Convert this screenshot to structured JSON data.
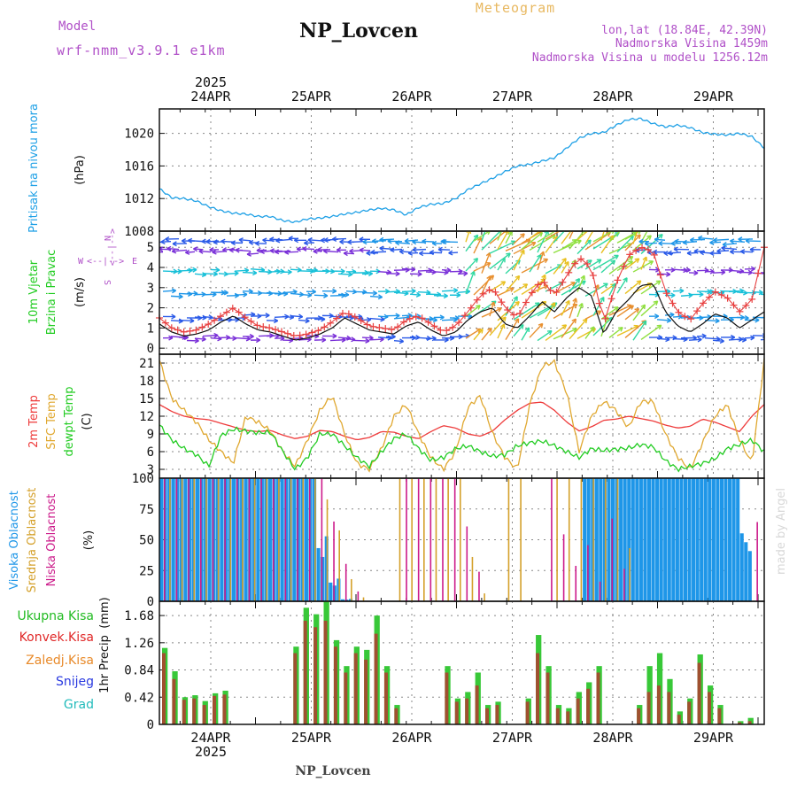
{
  "header": {
    "model_label": "Model",
    "model_name": "wrf-nmm_v3.9.1 e1km",
    "station": "NP_Lovcen",
    "product": "Meteogram",
    "coords": "lon,lat (18.84E, 42.39N)",
    "altitude": "Nadmorska Visina 1459m",
    "model_altitude": "Nadmorska Visina u modelu 1256.12m",
    "footer_station": "NP_Lovcen",
    "watermark": "made by Angel"
  },
  "colors": {
    "pressure": "#1ea0e6",
    "temp2m": "#ee3b3b",
    "sfc": "#e0a830",
    "dew": "#22cc22",
    "cloud_high": "#1e96e8",
    "cloud_mid": "#d4a02a",
    "cloud_low": "#cc1a8a",
    "precip_total": "#38c838",
    "precip_conv": "#a05030",
    "wind_label": "#22cc22",
    "wind_dir": "#b050c8",
    "title_purple": "#b050c8",
    "meteo_orange": "#e8b860"
  },
  "days": [
    "24APR",
    "25APR",
    "26APR",
    "27APR",
    "28APR",
    "29APR"
  ],
  "year": "2025",
  "chart_data": [
    {
      "type": "line",
      "id": "pressure",
      "ylabel": "Pritisak na nivou mora",
      "unit": "(hPa)",
      "ylim": [
        1008,
        1023
      ],
      "yticks": [
        "1008",
        "1012",
        "1016",
        "1020"
      ],
      "grid": true,
      "x_hours": [
        0,
        3,
        6,
        9,
        12,
        15,
        18,
        21,
        24,
        27,
        30,
        33,
        36,
        39,
        42,
        45,
        48,
        51,
        54,
        57,
        60,
        63,
        66,
        69,
        72,
        75,
        78,
        81,
        84,
        87,
        90,
        93,
        96,
        99,
        102,
        105,
        108,
        111,
        114,
        117,
        120,
        123,
        126,
        129,
        132,
        135,
        138,
        141,
        144,
        147
      ],
      "values": [
        1013.2,
        1012.1,
        1012.0,
        1011.7,
        1011.0,
        1010.5,
        1010.2,
        1010.1,
        1009.8,
        1009.8,
        1009.3,
        1009.1,
        1009.5,
        1009.6,
        1009.8,
        1010.1,
        1010.3,
        1010.6,
        1010.8,
        1010.6,
        1010.0,
        1010.9,
        1011.3,
        1011.4,
        1012.0,
        1013.1,
        1013.8,
        1014.5,
        1015.3,
        1016.0,
        1016.2,
        1016.6,
        1017.0,
        1018.2,
        1019.4,
        1020.0,
        1020.1,
        1021.0,
        1021.7,
        1021.8,
        1021.2,
        1020.8,
        1021.0,
        1020.7,
        1020.1,
        1019.9,
        1019.8,
        1020.0,
        1019.6,
        1018.2
      ]
    },
    {
      "type": "line",
      "id": "wind",
      "ylabel": [
        "10m Vjetar",
        "Brzina i Pravac"
      ],
      "unit": "(m/s)",
      "ylim": [
        -0.3,
        5.8
      ],
      "yticks": [
        "0",
        "1",
        "2",
        "3",
        "4",
        "5"
      ],
      "direction_legend": {
        "w": "W",
        "e": "E",
        "n": "N",
        "s": "S",
        "arrows": "<--|-->"
      },
      "grid": true,
      "series": [
        {
          "name": "speed",
          "values": [
            1.2,
            0.8,
            0.6,
            0.7,
            0.9,
            1.3,
            1.6,
            1.2,
            0.9,
            0.8,
            0.6,
            0.4,
            0.5,
            0.7,
            1.0,
            1.5,
            1.2,
            0.9,
            0.8,
            0.7,
            1.1,
            1.3,
            0.9,
            0.6,
            0.8,
            1.4,
            1.8,
            2.0,
            1.2,
            1.0,
            1.6,
            2.3,
            1.8,
            2.5,
            3.0,
            2.6,
            0.7,
            1.8,
            2.4,
            3.1,
            3.2,
            1.8,
            1.1,
            0.8,
            1.2,
            1.7,
            1.5,
            1.0,
            1.4,
            1.8
          ]
        },
        {
          "name": "gust",
          "values": [
            1.5,
            1.0,
            0.8,
            0.9,
            1.2,
            1.6,
            2.0,
            1.5,
            1.1,
            1.0,
            0.8,
            0.6,
            0.7,
            0.9,
            1.3,
            1.8,
            1.5,
            1.1,
            1.0,
            0.9,
            1.4,
            1.6,
            1.2,
            0.8,
            1.1,
            1.8,
            2.6,
            3.0,
            2.0,
            1.5,
            2.6,
            3.4,
            2.6,
            3.6,
            4.5,
            4.0,
            1.2,
            3.2,
            4.6,
            5.0,
            4.8,
            2.8,
            1.8,
            1.4,
            2.2,
            2.8,
            2.5,
            1.8,
            2.4,
            5.0
          ]
        }
      ]
    },
    {
      "type": "line",
      "id": "temperature",
      "ylabel": [
        "2m Temp",
        "SFC Temp",
        "dewpt Temp"
      ],
      "unit": "(C)",
      "ylim": [
        1.5,
        22.5
      ],
      "yticks": [
        "3",
        "6",
        "9",
        "12",
        "15",
        "18",
        "21"
      ],
      "grid": true,
      "series": [
        {
          "name": "2m Temp",
          "values": [
            14.0,
            12.8,
            12.0,
            11.6,
            11.4,
            10.8,
            10.2,
            9.6,
            9.4,
            9.6,
            8.8,
            8.2,
            8.6,
            9.6,
            9.4,
            8.6,
            8.0,
            8.4,
            9.4,
            9.3,
            8.6,
            8.2,
            9.4,
            10.4,
            10.0,
            9.0,
            8.6,
            9.5,
            11.4,
            13.0,
            14.2,
            14.4,
            13.0,
            11.0,
            9.5,
            10.2,
            11.3,
            11.5,
            12.0,
            11.6,
            11.2,
            10.5,
            10.0,
            10.3,
            11.5,
            11.0,
            10.2,
            9.4,
            12.0,
            14.0
          ]
        },
        {
          "name": "SFC Temp",
          "values": [
            21.5,
            15.0,
            13.0,
            11.0,
            8.0,
            6.0,
            4.0,
            12.0,
            11.0,
            9.5,
            6.0,
            3.5,
            8.0,
            13.0,
            15.5,
            9.0,
            4.0,
            3.0,
            6.5,
            12.0,
            14.0,
            9.0,
            5.0,
            3.0,
            6.0,
            13.5,
            15.5,
            9.0,
            5.0,
            3.0,
            14.0,
            20.5,
            21.2,
            16.0,
            6.0,
            12.0,
            14.5,
            13.0,
            10.0,
            14.5,
            14.5,
            9.0,
            5.0,
            3.0,
            7.5,
            12.0,
            14.0,
            8.0,
            4.0,
            21.5
          ]
        },
        {
          "name": "dewpt Temp",
          "values": [
            10.5,
            8.0,
            6.5,
            5.5,
            3.5,
            8.8,
            9.8,
            9.5,
            9.2,
            9.3,
            6.0,
            3.0,
            5.0,
            9.0,
            9.0,
            7.0,
            5.0,
            3.5,
            6.0,
            8.2,
            9.0,
            6.5,
            4.5,
            5.0,
            6.5,
            7.0,
            6.0,
            5.2,
            5.5,
            7.0,
            7.5,
            7.8,
            7.0,
            6.0,
            5.0,
            6.5,
            6.2,
            6.4,
            6.6,
            7.2,
            6.8,
            4.5,
            3.0,
            3.5,
            4.0,
            4.8,
            6.5,
            7.2,
            8.0,
            6.0
          ]
        }
      ]
    },
    {
      "type": "bar",
      "id": "clouds",
      "ylabel": [
        "Visoka Oblacnost",
        "Srednja Oblacnost",
        "Niska Oblacnost"
      ],
      "unit": "(%)",
      "ylim": [
        0,
        100
      ],
      "yticks": [
        "0",
        "25",
        "50",
        "75",
        "100"
      ],
      "grid": true,
      "series": [
        {
          "name": "Visoka Oblacnost",
          "values": [
            100,
            100,
            100,
            100,
            100,
            100,
            100,
            100,
            100,
            100,
            100,
            100,
            100,
            60,
            20,
            2,
            0,
            0,
            0,
            0,
            0,
            0,
            0,
            0,
            0,
            0,
            0,
            0,
            0,
            0,
            0,
            0,
            0,
            0,
            0,
            100,
            100,
            100,
            100,
            100,
            100,
            100,
            100,
            100,
            100,
            100,
            100,
            100,
            60,
            0
          ]
        },
        {
          "name": "Srednja Oblacnost",
          "values": [
            100,
            100,
            100,
            100,
            100,
            100,
            100,
            100,
            100,
            100,
            100,
            100,
            100,
            90,
            60,
            30,
            5,
            0,
            0,
            100,
            100,
            100,
            100,
            100,
            100,
            60,
            10,
            0,
            100,
            100,
            0,
            0,
            100,
            100,
            100,
            100,
            100,
            100,
            60,
            0,
            0,
            0,
            0,
            0,
            0,
            0,
            0,
            0,
            0,
            0
          ]
        },
        {
          "name": "Niska Oblacnost",
          "values": [
            100,
            100,
            100,
            100,
            100,
            100,
            100,
            100,
            100,
            100,
            100,
            100,
            100,
            100,
            90,
            40,
            10,
            0,
            0,
            0,
            100,
            100,
            100,
            100,
            100,
            80,
            30,
            0,
            0,
            0,
            0,
            0,
            100,
            80,
            40,
            60,
            20,
            80,
            30,
            0,
            0,
            0,
            0,
            0,
            0,
            0,
            0,
            0,
            0,
            70
          ]
        }
      ]
    },
    {
      "type": "bar",
      "id": "precipitation",
      "ylabel": "1hr Precip",
      "unit": "(mm)",
      "ylim": [
        0,
        1.9
      ],
      "yticks": [
        "0",
        "0.42",
        "0.84",
        "1.26",
        "1.68"
      ],
      "legend": [
        "Ukupna Kisa",
        "Konvek.Kisa",
        "Zaledj.Kisa",
        "Snijeg",
        "Grad"
      ],
      "legend_colors": [
        "#22bb22",
        "#e02828",
        "#e88a2a",
        "#2a3ae0",
        "#22bbbb"
      ],
      "grid": true,
      "series": [
        {
          "name": "Ukupna Kisa",
          "values": [
            1.18,
            0.82,
            0.42,
            0.45,
            0.36,
            0.48,
            0.52,
            0,
            0,
            0,
            0,
            0,
            0,
            1.2,
            1.8,
            1.7,
            1.9,
            1.3,
            0.9,
            1.2,
            1.15,
            1.68,
            0.9,
            0.3,
            0,
            0,
            0,
            0,
            0.9,
            0.4,
            0.5,
            0.8,
            0.3,
            0.35,
            0,
            0,
            0.4,
            1.38,
            0.9,
            0.3,
            0.25,
            0.5,
            0.65,
            0.9,
            0,
            0,
            0,
            0.3,
            0.9,
            1.1,
            0.7,
            0.2,
            0.4,
            1.08,
            0.6,
            0.3,
            0,
            0.05,
            0.1
          ]
        },
        {
          "name": "Konvek.Kisa",
          "values": [
            1.1,
            0.7,
            0.38,
            0.4,
            0.3,
            0.44,
            0.46,
            0,
            0,
            0,
            0,
            0,
            0,
            1.1,
            1.6,
            1.5,
            1.6,
            1.2,
            0.8,
            1.1,
            1.0,
            1.4,
            0.8,
            0.25,
            0,
            0,
            0,
            0,
            0.8,
            0.35,
            0.4,
            0.6,
            0.25,
            0.3,
            0,
            0,
            0.35,
            1.1,
            0.8,
            0.25,
            0.2,
            0.4,
            0.55,
            0.8,
            0,
            0,
            0,
            0.25,
            0.5,
            0.6,
            0.5,
            0.15,
            0.35,
            0.95,
            0.5,
            0.25,
            0,
            0.03,
            0.05
          ]
        }
      ]
    }
  ]
}
